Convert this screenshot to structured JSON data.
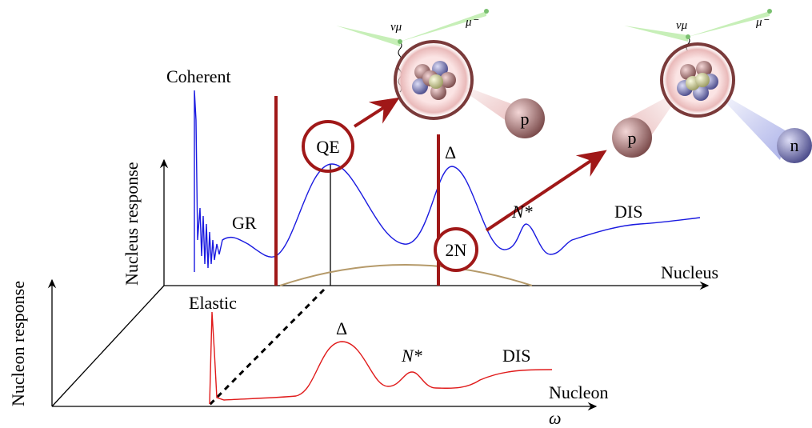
{
  "nucleus": {
    "axis_label": "Nucleus response",
    "x_label": "Nucleus",
    "coherent": "Coherent",
    "gr": "GR",
    "qe": "QE",
    "delta": "Δ",
    "nstar": "N*",
    "dis": "DIS",
    "two_n": "2N"
  },
  "nucleon": {
    "axis_label": "Nucleon response",
    "x_label": "Nucleon",
    "elastic": "Elastic",
    "delta": "Δ",
    "nstar": "N*",
    "dis": "DIS",
    "omega": "ω"
  },
  "qe_event": {
    "neutrino": "νμ",
    "muon": "μ⁻",
    "proton": "p"
  },
  "two_n_event": {
    "neutrino": "νμ",
    "muon": "μ⁻",
    "proton": "p",
    "neutron": "n"
  }
}
